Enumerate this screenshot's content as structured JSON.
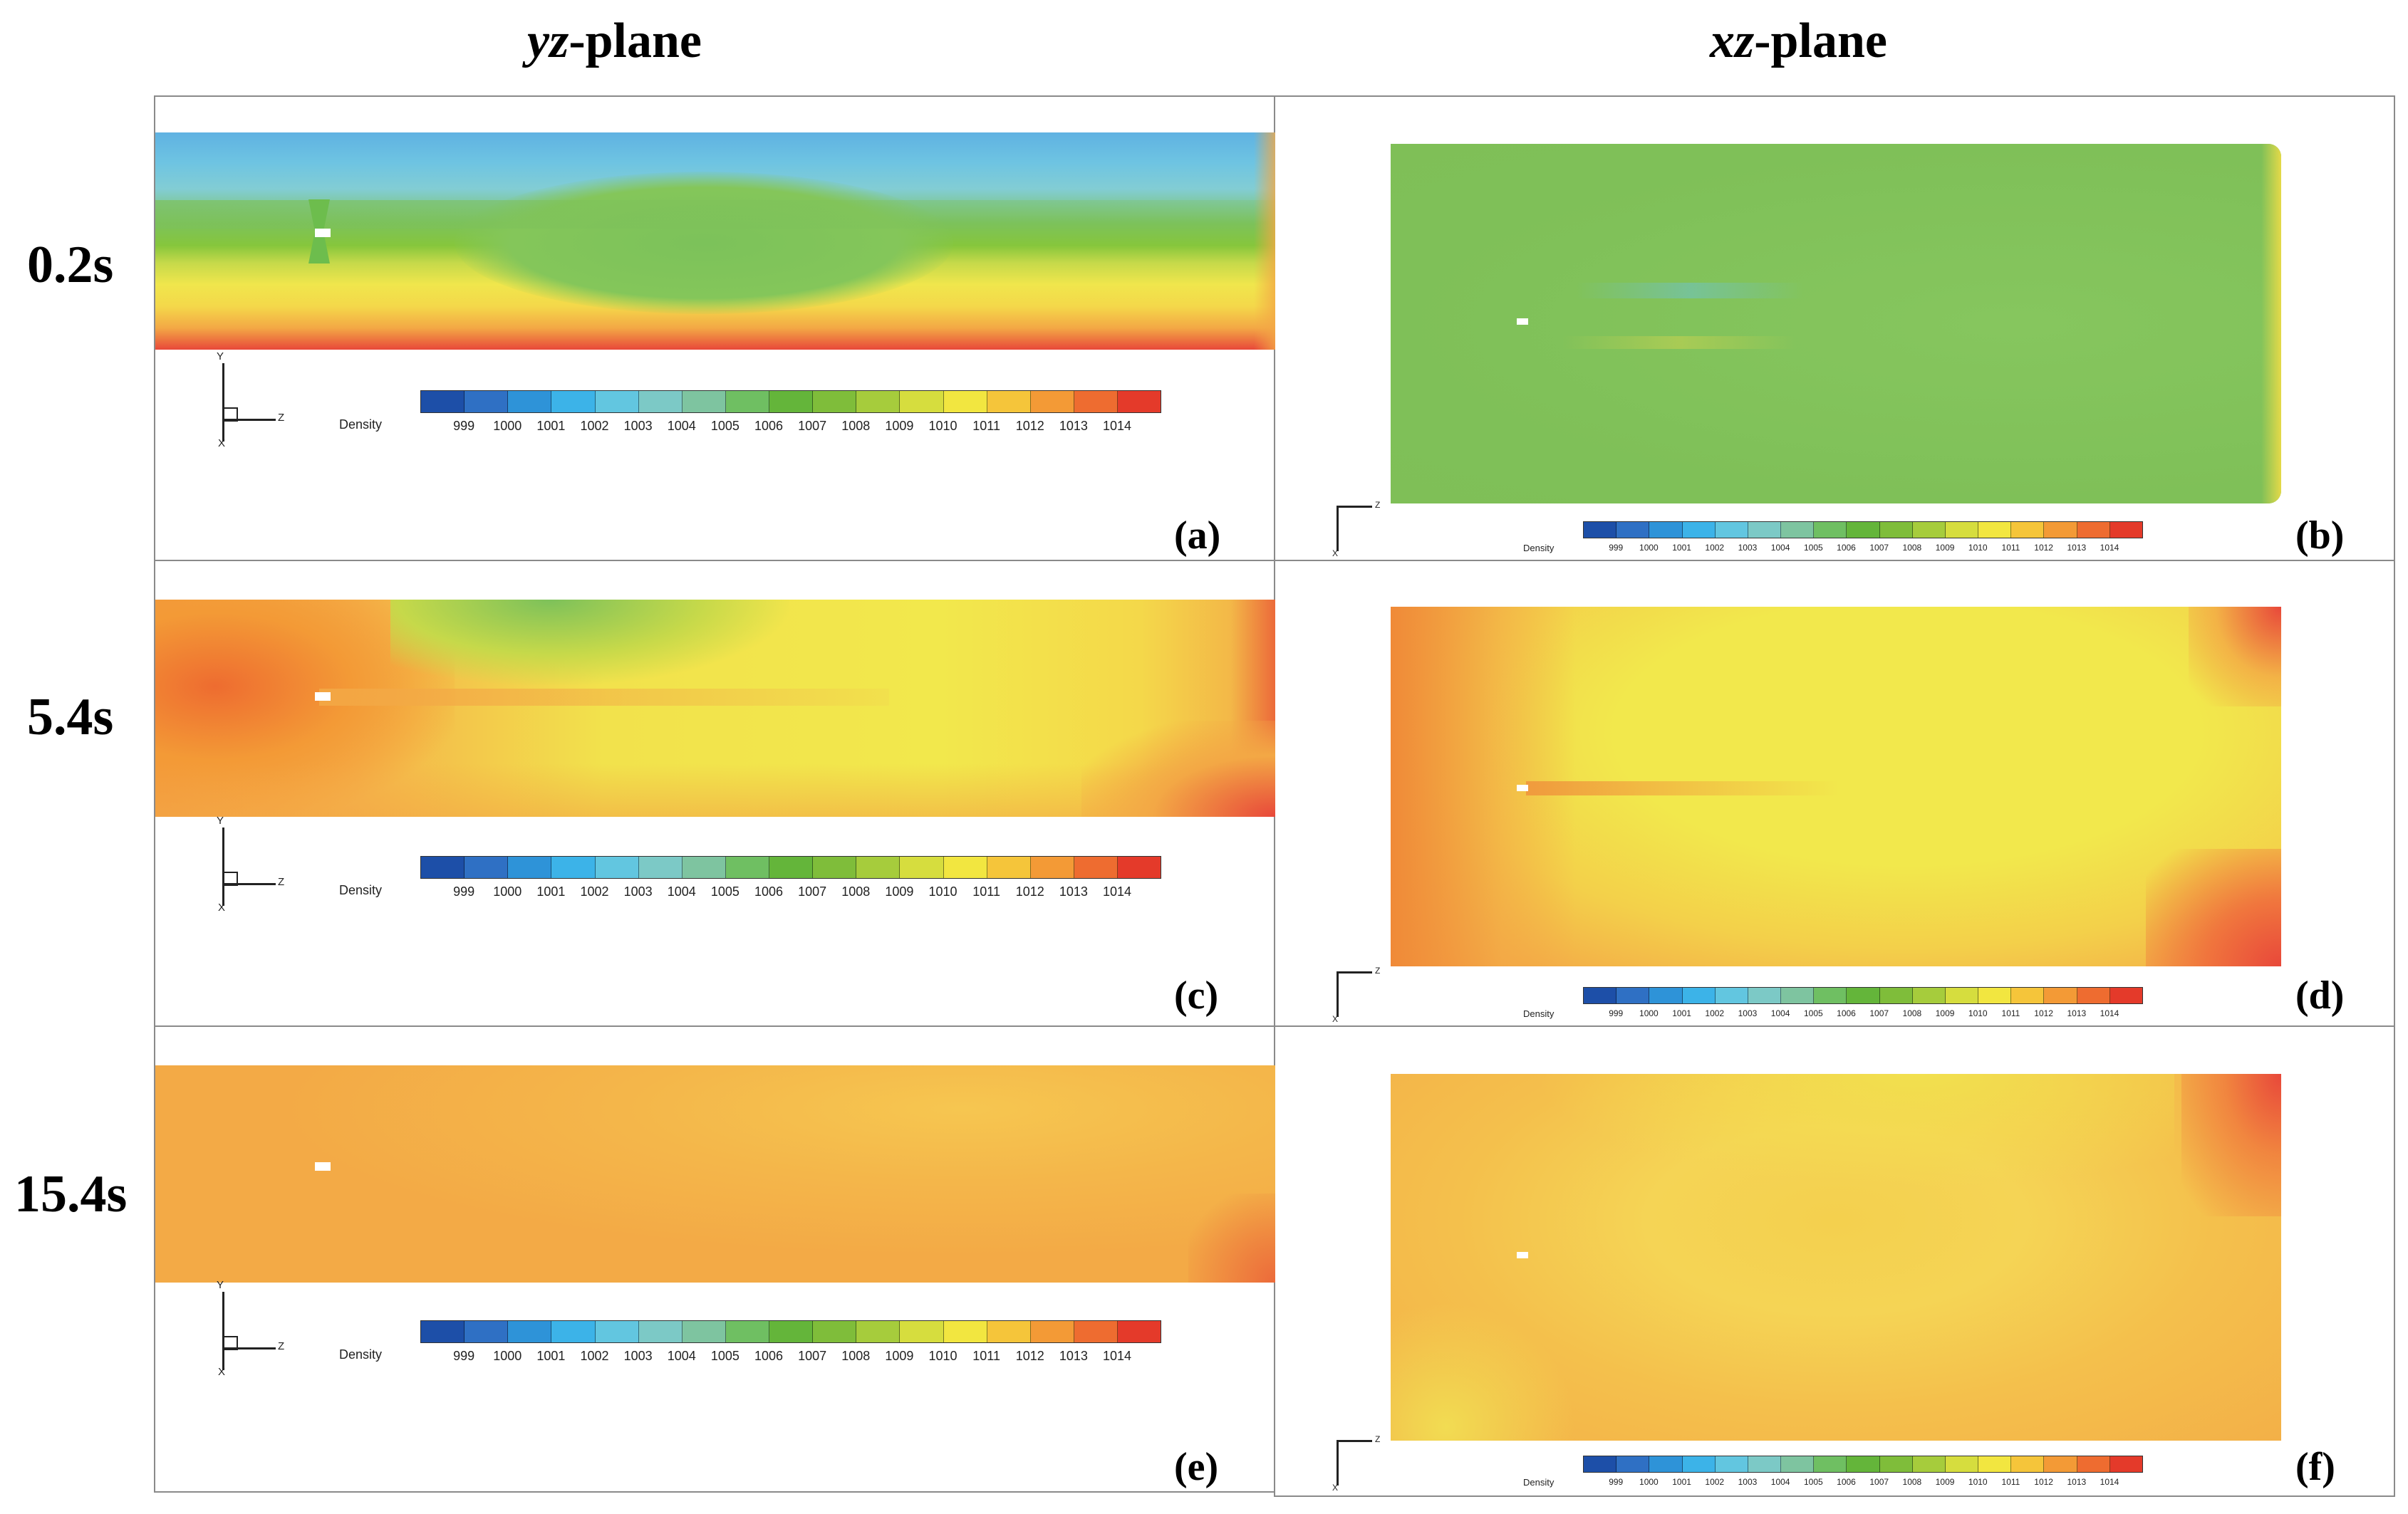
{
  "columns": {
    "yz": {
      "italic": "yz",
      "rest": "-plane"
    },
    "xz": {
      "italic": "xz",
      "rest": "-plane"
    }
  },
  "rows": [
    "0.2s",
    "5.4s",
    "15.4s"
  ],
  "panel_labels": [
    "(a)",
    "(b)",
    "(c)",
    "(d)",
    "(e)",
    "(f)"
  ],
  "colorbar": {
    "label": "Density",
    "ticks": [
      "999",
      "1000",
      "1001",
      "1002",
      "1003",
      "1004",
      "1005",
      "1006",
      "1007",
      "1008",
      "1009",
      "1010",
      "1011",
      "1012",
      "1013",
      "1014"
    ],
    "colors": [
      "#1d4fa8",
      "#2f70c4",
      "#2e93d8",
      "#3cb3e8",
      "#62c6e0",
      "#7cc9c6",
      "#7ec4a0",
      "#6fbf62",
      "#64b53a",
      "#7fbd3a",
      "#a6cc3c",
      "#d6dd3e",
      "#f2e640",
      "#f5c53a",
      "#f39a36",
      "#ee6c30",
      "#e43a2a"
    ]
  },
  "axes": {
    "y": "Y",
    "z": "Z",
    "x": "X"
  },
  "colors": {
    "blue": "#2f7cc6",
    "lightblue": "#62bde0",
    "cyan": "#7ccdd8",
    "green": "#7dc15a",
    "yellowgreen": "#c6d94a",
    "yellow": "#f2e84c",
    "lightorange": "#f6d25a",
    "orange": "#f3a845",
    "red": "#e8483a",
    "border": "#8a8a8a"
  }
}
